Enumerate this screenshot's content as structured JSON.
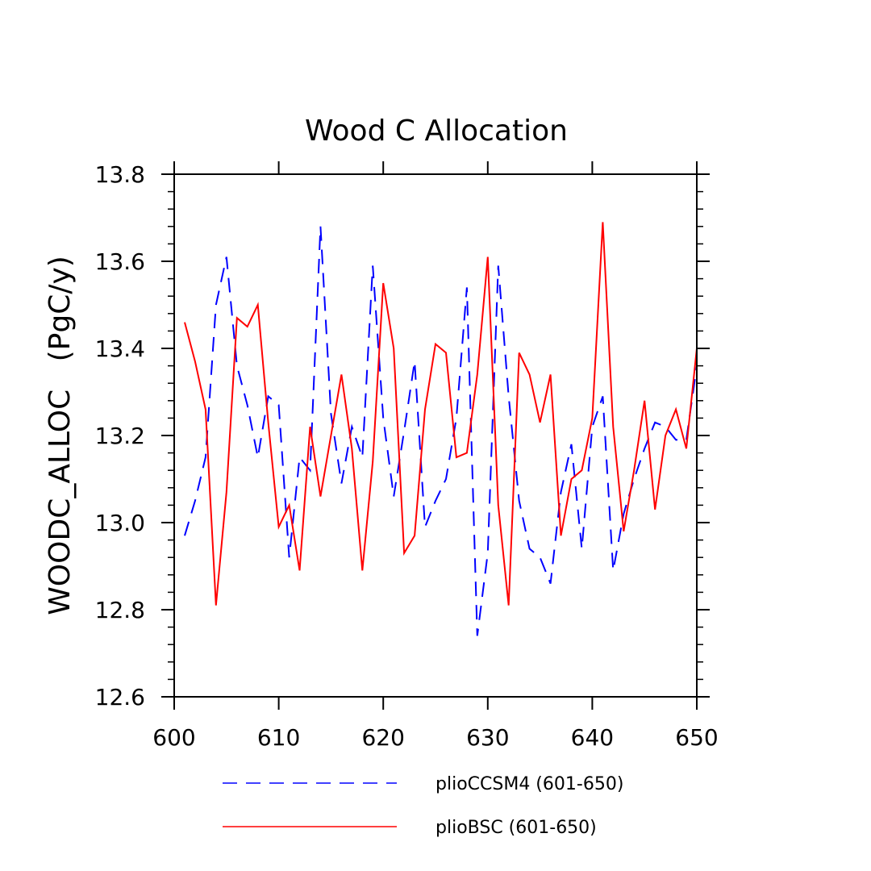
{
  "chart_data": {
    "type": "line",
    "title": "Wood C Allocation",
    "xlabel": "",
    "ylabel": "WOODC_ALLOC   (PgC/y)",
    "xlim": [
      600,
      650
    ],
    "ylim": [
      12.6,
      13.8
    ],
    "xticks": [
      600,
      610,
      620,
      630,
      640,
      650
    ],
    "xtick_labels": [
      "600",
      "610",
      "620",
      "630",
      "640",
      "650"
    ],
    "yticks": [
      12.6,
      12.8,
      13.0,
      13.2,
      13.4,
      13.6,
      13.8
    ],
    "ytick_labels": [
      "12.6",
      "12.8",
      "13.0",
      "13.2",
      "13.4",
      "13.6",
      "13.8"
    ],
    "grid": false,
    "legend": "bottom",
    "x": [
      601,
      602,
      603,
      604,
      605,
      606,
      607,
      608,
      609,
      610,
      611,
      612,
      613,
      614,
      615,
      616,
      617,
      618,
      619,
      620,
      621,
      622,
      623,
      624,
      625,
      626,
      627,
      628,
      629,
      630,
      631,
      632,
      633,
      634,
      635,
      636,
      637,
      638,
      639,
      640,
      641,
      642,
      643,
      644,
      645,
      646,
      647,
      648,
      649,
      650
    ],
    "series": [
      {
        "name": "plioCCSM4 (601-650)",
        "color": "#0000ff",
        "dash": "dashed",
        "values": [
          12.97,
          13.05,
          13.15,
          13.5,
          13.61,
          13.36,
          13.27,
          13.15,
          13.29,
          13.27,
          12.92,
          13.15,
          13.12,
          13.68,
          13.25,
          13.09,
          13.22,
          13.15,
          13.59,
          13.24,
          13.06,
          13.21,
          13.37,
          12.99,
          13.05,
          13.1,
          13.24,
          13.54,
          12.74,
          12.93,
          13.59,
          13.29,
          13.05,
          12.94,
          12.92,
          12.86,
          13.07,
          13.18,
          12.94,
          13.22,
          13.29,
          12.89,
          13.02,
          13.1,
          13.17,
          13.23,
          13.22,
          13.19,
          13.19,
          13.36
        ]
      },
      {
        "name": "plioBSC (601-650)",
        "color": "#ff0000",
        "dash": "solid",
        "values": [
          13.46,
          13.37,
          13.26,
          12.81,
          13.07,
          13.47,
          13.45,
          13.5,
          13.23,
          12.99,
          13.04,
          12.89,
          13.22,
          13.06,
          13.2,
          13.34,
          13.17,
          12.89,
          13.14,
          13.55,
          13.4,
          12.93,
          12.97,
          13.26,
          13.41,
          13.39,
          13.15,
          13.16,
          13.34,
          13.61,
          13.04,
          12.81,
          13.39,
          13.34,
          13.23,
          13.34,
          12.97,
          13.1,
          13.12,
          13.24,
          13.69,
          13.22,
          12.98,
          13.12,
          13.28,
          13.03,
          13.2,
          13.26,
          13.17,
          13.4
        ]
      }
    ]
  }
}
